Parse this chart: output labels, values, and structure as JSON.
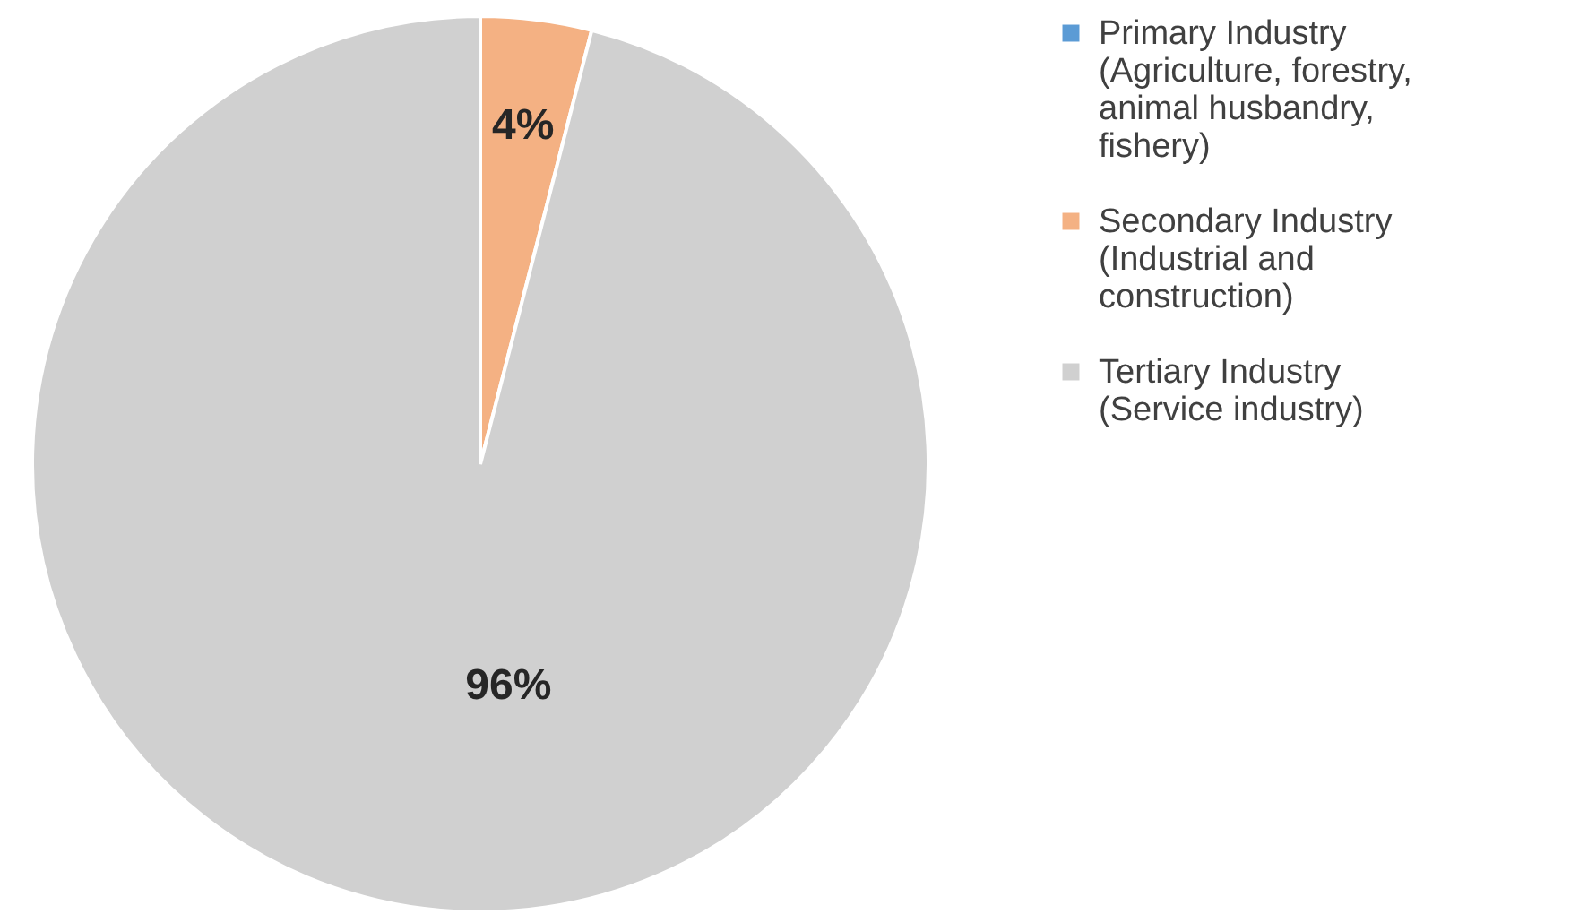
{
  "chart_data": {
    "type": "pie",
    "categories": [
      "Primary Industry (Agriculture, forestry, animal husbandry, fishery)",
      "Secondary Industry (Industrial and construction)",
      "Tertiary Industry (Service industry)"
    ],
    "values": [
      0,
      4,
      96
    ],
    "colors": [
      "#5b9bd5",
      "#f4b183",
      "#d0d0d0"
    ],
    "value_labels": [
      null,
      "4%",
      "96%"
    ],
    "legend": "right"
  }
}
